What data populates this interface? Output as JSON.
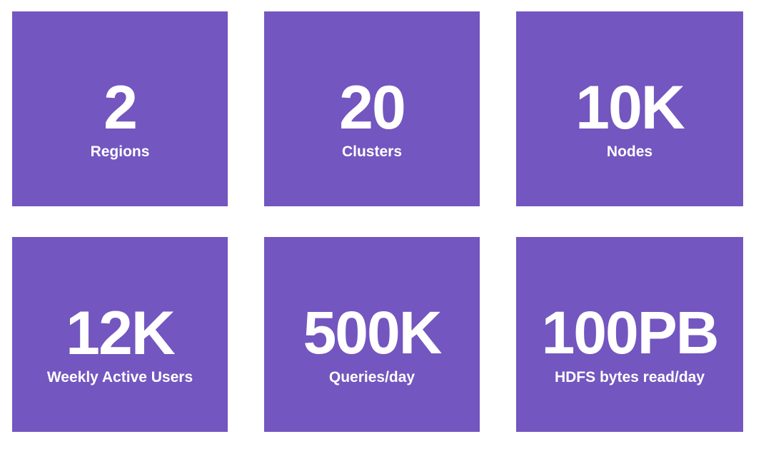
{
  "accent_color": "#7356bf",
  "text_color": "#ffffff",
  "stats": [
    {
      "value": "2",
      "label": "Regions"
    },
    {
      "value": "20",
      "label": "Clusters"
    },
    {
      "value": "10K",
      "label": "Nodes"
    },
    {
      "value": "12K",
      "label": "Weekly Active Users"
    },
    {
      "value": "500K",
      "label": "Queries/day"
    },
    {
      "value": "100PB",
      "label": "HDFS bytes read/day"
    }
  ]
}
